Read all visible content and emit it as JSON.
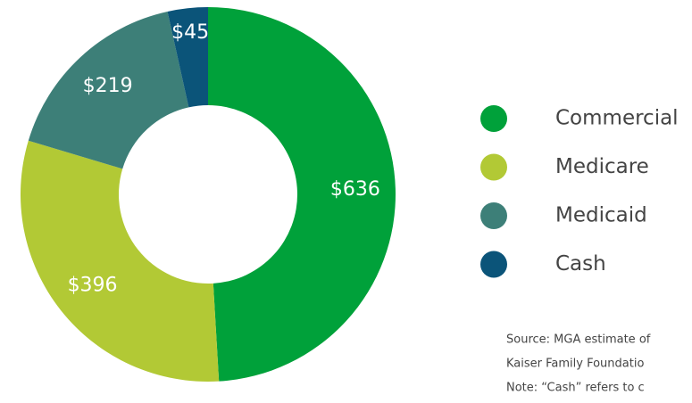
{
  "chart_data": {
    "type": "donut",
    "categories": [
      "Commercial",
      "Medicare",
      "Medicaid",
      "Cash"
    ],
    "values": [
      636,
      396,
      219,
      45
    ],
    "value_labels": [
      "$636",
      "$396",
      "$219",
      "$45"
    ],
    "colors": [
      "#00a13a",
      "#b2c935",
      "#3d7f78",
      "#0b5479"
    ],
    "legend": "right",
    "notes": [
      "Source: MGA estimate of",
      "Kaiser Family Foundatio",
      "Note: “Cash” refers to c"
    ]
  }
}
